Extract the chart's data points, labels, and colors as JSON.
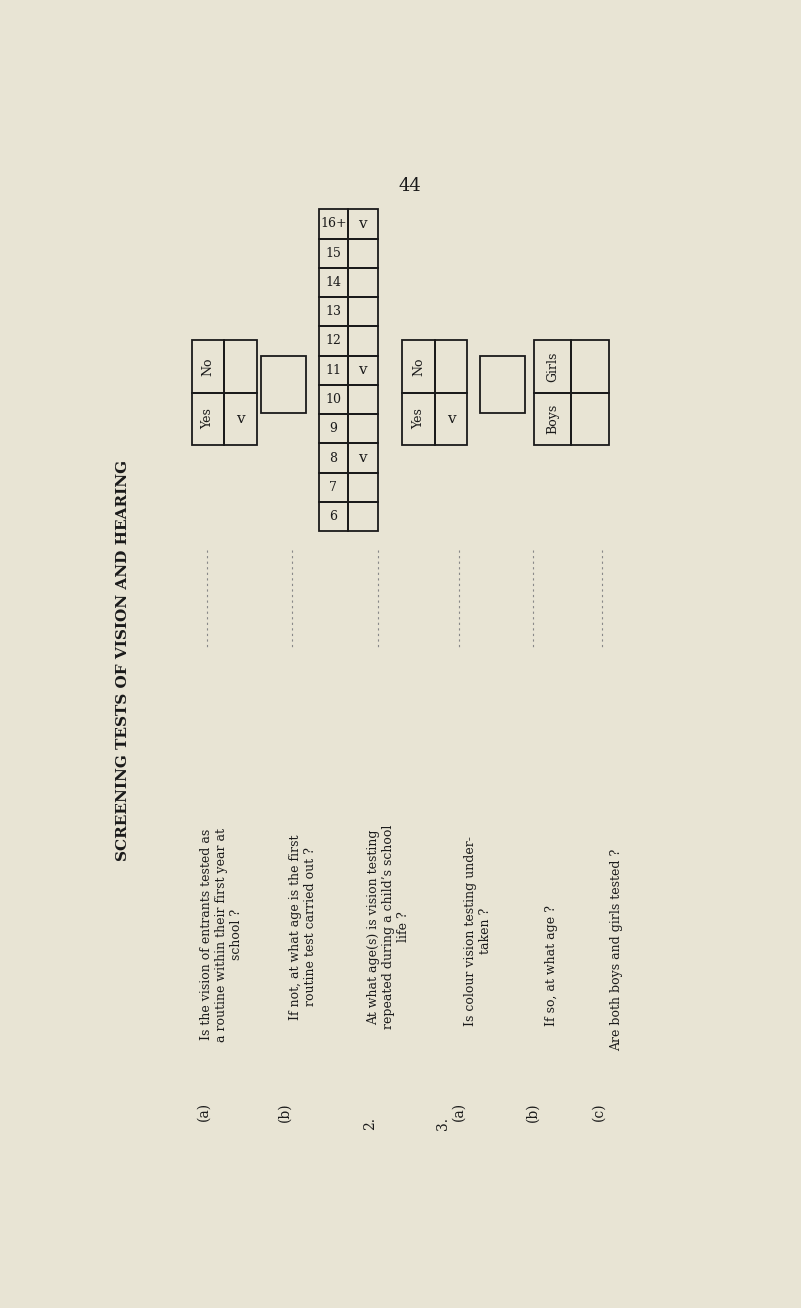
{
  "page_number": "44",
  "bg_color": "#e8e4d4",
  "title": "SCREENING TESTS OF VISION AND HEARING",
  "q1_label": "(a)",
  "q1_text": "Is the vision of entrants tested as\na routine within their first year at\nschool ?",
  "q1b_label": "(b)",
  "q1b_text": "If not, at what age is the first\nroutine test carried out ?",
  "q2_num": "2.",
  "q2_text": "At what age(s) is vision testing\nrepeated during a child’s school\nlife ?",
  "q3_num": "3.",
  "q3a_label": "(a)",
  "q3a_text": "Is colour vision testing under-\ntaken ?",
  "q3b_label": "(b)",
  "q3b_text": "If so, at what age ?",
  "q3c_label": "(c)",
  "q3c_text": "Are both boys and girls tested ?",
  "ages": [
    "6",
    "7",
    "8",
    "9",
    "10",
    "11",
    "12",
    "13",
    "14",
    "15",
    "16+"
  ],
  "age_checks": {
    "8": "v",
    "11": "v",
    "16+": "v"
  },
  "yn1_yes_check": "v",
  "yn1_no_check": "",
  "yn3a_yes_check": "v",
  "yn3a_no_check": "",
  "bg_ghost_color": "#ccc8b0"
}
